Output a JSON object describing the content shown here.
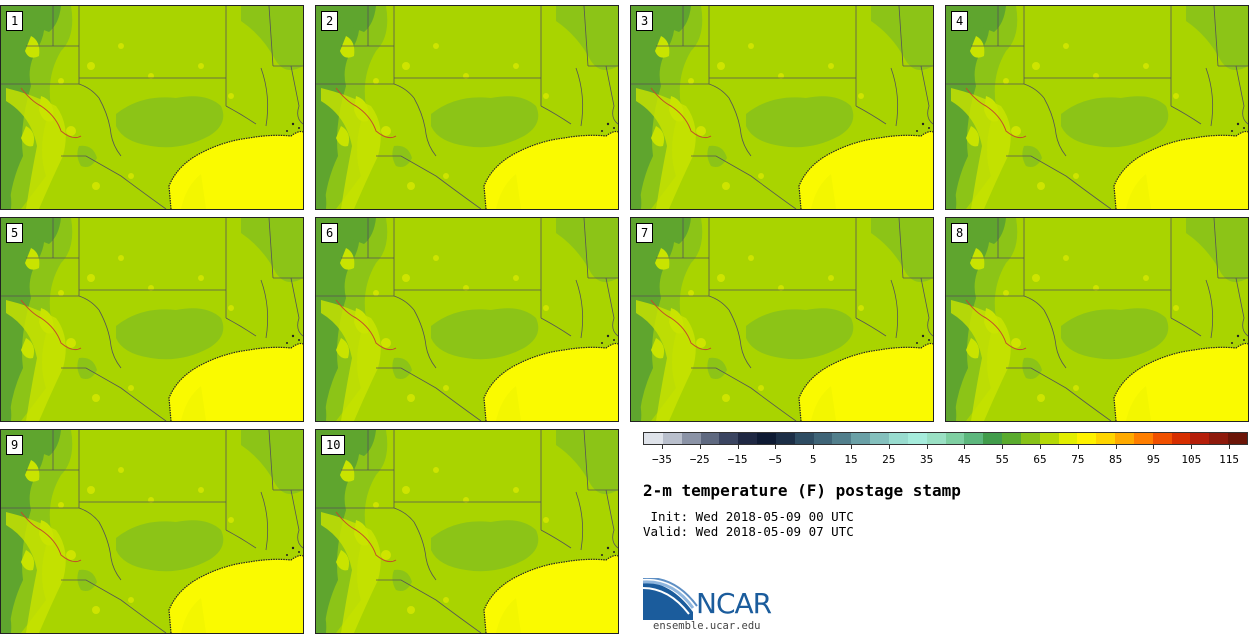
{
  "panels": [
    {
      "label": "1"
    },
    {
      "label": "2"
    },
    {
      "label": "3"
    },
    {
      "label": "4"
    },
    {
      "label": "5"
    },
    {
      "label": "6"
    },
    {
      "label": "7"
    },
    {
      "label": "8"
    },
    {
      "label": "9"
    },
    {
      "label": "10"
    }
  ],
  "colorbar": {
    "colors": [
      "#dfe3ea",
      "#b9bfcc",
      "#8b93a6",
      "#5f6980",
      "#3b4561",
      "#1f2843",
      "#0e1a33",
      "#1c2e46",
      "#2e4c62",
      "#3f6477",
      "#527f8c",
      "#6aa0a6",
      "#84c0bd",
      "#99dccf",
      "#a6ecdc",
      "#9ae0c4",
      "#7fcfa2",
      "#5db77d",
      "#419c4b",
      "#5aab2e",
      "#88c218",
      "#b4d806",
      "#e2ee00",
      "#fff200",
      "#ffd500",
      "#ffaa00",
      "#ff7e00",
      "#f05000",
      "#d62e00",
      "#b51e0a",
      "#8e1a0c",
      "#6b1508"
    ],
    "tick_labels": [
      "−35",
      "−25",
      "−15",
      "−5",
      "5",
      "15",
      "25",
      "35",
      "45",
      "55",
      "65",
      "75",
      "85",
      "95",
      "105",
      "115"
    ]
  },
  "title": "2-m temperature (F) postage stamp",
  "init_line": " Init: Wed 2018-05-09 00 UTC",
  "valid_line": "Valid: Wed 2018-05-09 07 UTC",
  "logo": {
    "text": "NCAR",
    "color": "#1b5c9c"
  },
  "site": "ensemble.ucar.edu",
  "map_colors": {
    "base": "#a9d400",
    "mid": "#8cc417",
    "dark": "#5fa52e",
    "light": "#c9e400",
    "warm": "#e7ef00",
    "sea": "#fafa00",
    "sea_edge": "#f0f300",
    "line": "#555555",
    "border_red": "#c44a2a"
  }
}
